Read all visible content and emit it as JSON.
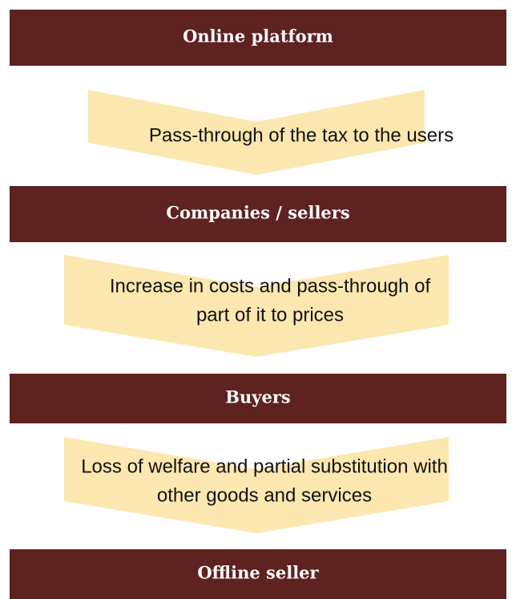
{
  "nodes": [
    {
      "label": "Online platform"
    },
    {
      "label": "Companies / sellers"
    },
    {
      "label": "Buyers"
    },
    {
      "label": "Offline seller"
    }
  ],
  "arrows": [
    {
      "lines": [
        "Pass-through of the tax to the users"
      ]
    },
    {
      "lines": [
        "Increase in costs and pass-through of",
        "part of it to prices"
      ]
    },
    {
      "lines": [
        "Loss of welfare and partial substitution with",
        "other goods and services"
      ]
    }
  ]
}
